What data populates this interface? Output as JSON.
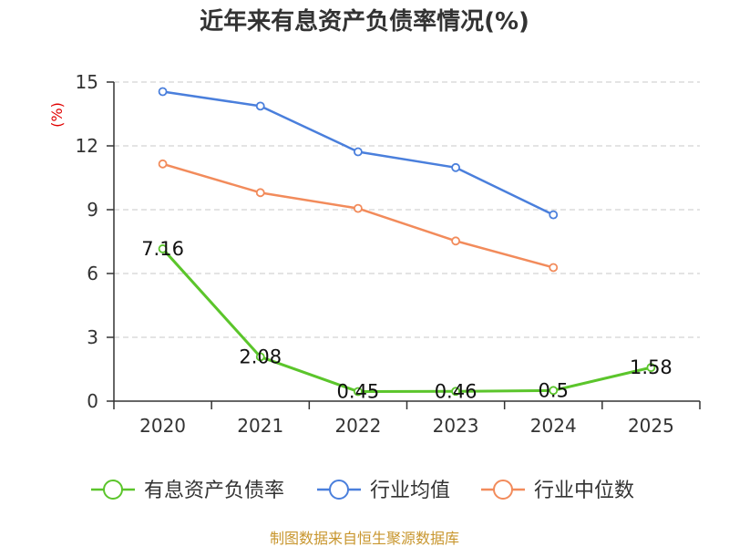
{
  "chart_data": {
    "type": "line",
    "title": "近年来有息资产负债率情况(%)",
    "ylabel": "(%)",
    "xlabel": "",
    "categories": [
      "2020",
      "2021",
      "2022",
      "2023",
      "2024",
      "2025"
    ],
    "ylim": [
      0,
      15
    ],
    "yticks": [
      0,
      3,
      6,
      9,
      12,
      15
    ],
    "grid": true,
    "legend_position": "bottom",
    "series": [
      {
        "name": "有息资产负债率",
        "color": "#5bc52b",
        "values": [
          7.16,
          2.08,
          0.45,
          0.46,
          0.5,
          1.58
        ],
        "labels": [
          "7.16",
          "2.08",
          "0.45",
          "0.46",
          "0.5",
          "1.58"
        ]
      },
      {
        "name": "行业均值",
        "color": "#4a7fdc",
        "values": [
          14.55,
          13.87,
          11.72,
          10.98,
          8.76,
          null
        ]
      },
      {
        "name": "行业中位数",
        "color": "#f28b5b",
        "values": [
          11.15,
          9.8,
          9.06,
          7.53,
          6.28,
          null
        ]
      }
    ],
    "source": "制图数据来自恒生聚源数据库"
  }
}
